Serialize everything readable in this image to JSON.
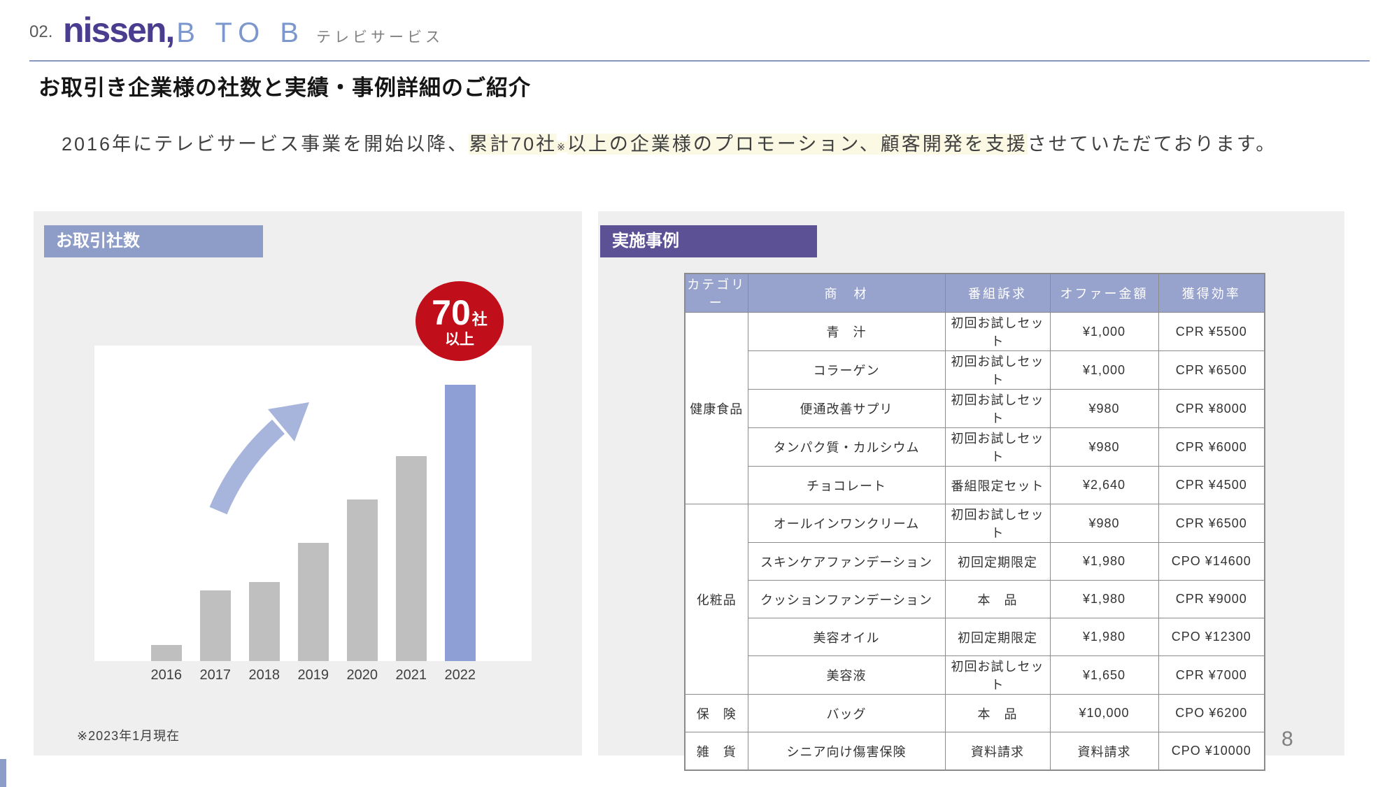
{
  "header": {
    "slide_index": "02.",
    "logo": {
      "brand": "nissen,",
      "sub": "B TO B",
      "service": "テレビサービス"
    }
  },
  "title": "お取引き企業様の社数と実績・事例詳細のご紹介",
  "lead": {
    "pre": "2016年にテレビサービス事業を開始以降、",
    "hl1": "累計70社",
    "note_mark": "※",
    "hl2": "以上の企業様のプロモーション、顧客開発を支援",
    "post": "させていただております。"
  },
  "left_panel": {
    "label": "お取引社数",
    "badge": {
      "number": "70",
      "unit": "社",
      "suffix": "以上"
    },
    "footnote": "※2023年1月現在"
  },
  "right_panel": {
    "label": "実施事例"
  },
  "chart_data": {
    "type": "bar",
    "title": "お取引社数",
    "categories": [
      "2016",
      "2017",
      "2018",
      "2019",
      "2020",
      "2021",
      "2022"
    ],
    "values": [
      4,
      18,
      20,
      30,
      41,
      52,
      70
    ],
    "unit": "社",
    "xlabel": "",
    "ylabel": "",
    "ylim": [
      0,
      80
    ],
    "grid": false,
    "legend": false,
    "highlight_index": 6,
    "bar_color": "#BFBFBF",
    "highlight_color": "#8E9FD5",
    "annotation": "70社以上"
  },
  "table": {
    "headers": [
      "カテゴリー",
      "商　材",
      "番組訴求",
      "オファー金額",
      "獲得効率"
    ],
    "groups": [
      {
        "category": "健康食品",
        "rows": [
          [
            "青　汁",
            "初回お試しセット",
            "¥1,000",
            "CPR ¥5500"
          ],
          [
            "コラーゲン",
            "初回お試しセット",
            "¥1,000",
            "CPR ¥6500"
          ],
          [
            "便通改善サプリ",
            "初回お試しセット",
            "¥980",
            "CPR ¥8000"
          ],
          [
            "タンパク質・カルシウム",
            "初回お試しセット",
            "¥980",
            "CPR ¥6000"
          ],
          [
            "チョコレート",
            "番組限定セット",
            "¥2,640",
            "CPR ¥4500"
          ]
        ]
      },
      {
        "category": "化粧品",
        "rows": [
          [
            "オールインワンクリーム",
            "初回お試しセット",
            "¥980",
            "CPR ¥6500"
          ],
          [
            "スキンケアファンデーション",
            "初回定期限定",
            "¥1,980",
            "CPO ¥14600"
          ],
          [
            "クッションファンデーション",
            "本　品",
            "¥1,980",
            "CPR ¥9000"
          ],
          [
            "美容オイル",
            "初回定期限定",
            "¥1,980",
            "CPO ¥12300"
          ],
          [
            "美容液",
            "初回お試しセット",
            "¥1,650",
            "CPR ¥7000"
          ]
        ]
      },
      {
        "category": "保　険",
        "rows": [
          [
            "バッグ",
            "本　品",
            "¥10,000",
            "CPO ¥6200"
          ]
        ]
      },
      {
        "category": "雑　貨",
        "rows": [
          [
            "シニア向け傷害保険",
            "資料請求",
            "資料請求",
            "CPO ¥10000"
          ]
        ]
      }
    ]
  },
  "page": {
    "number": "8"
  },
  "colors": {
    "periwinkle": "#8E9CC8",
    "table_header": "#98A3CD",
    "purple": "#5D5196",
    "logo_purple": "#4A3D8F",
    "logo_blue": "#7B97CD",
    "badge_red": "#C00E1A",
    "panel_gray": "#EFEFEF",
    "bar_gray": "#BFBFBF",
    "bar_accent": "#8E9FD5",
    "arrow": "#A7B4DC",
    "highlight_yellow": "#FBF8E3",
    "rule_blue": "#8697BE"
  }
}
